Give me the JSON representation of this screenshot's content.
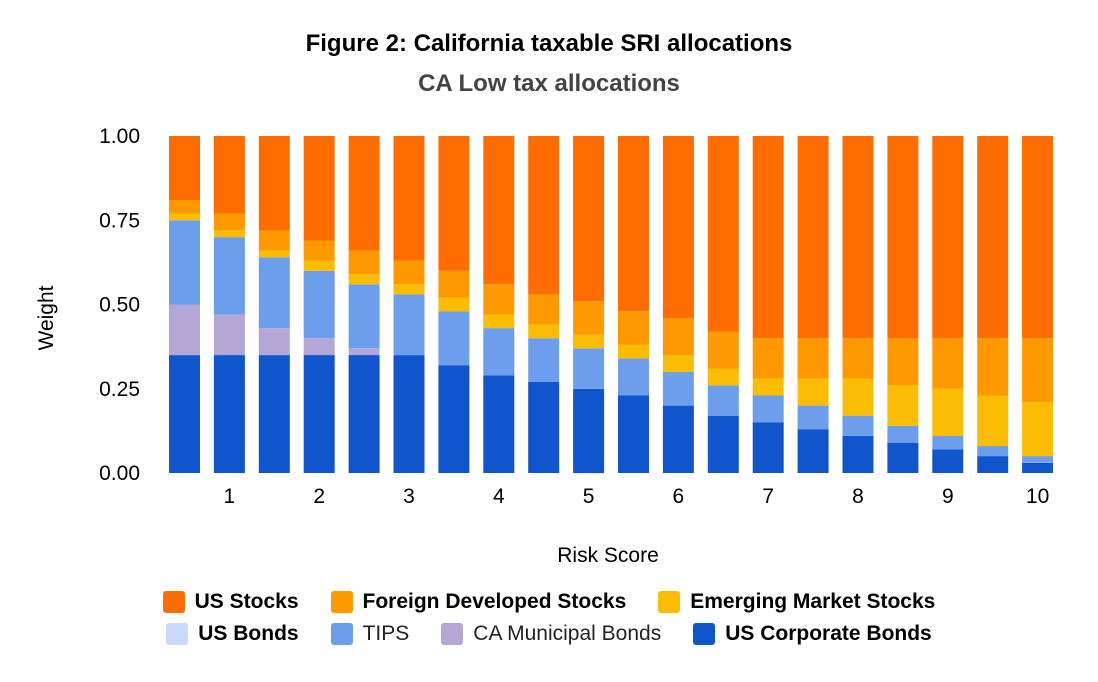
{
  "chart_data": {
    "type": "bar",
    "stacked": true,
    "title": "Figure 2: California taxable SRI allocations",
    "subtitle": "CA Low tax allocations",
    "xlabel": "Risk Score",
    "ylabel": "Weight",
    "ylim": [
      0,
      1
    ],
    "yticks": [
      "0.00",
      "0.25",
      "0.50",
      "0.75",
      "1.00"
    ],
    "xtick_labels": [
      "",
      "1",
      "",
      "2",
      "",
      "3",
      "",
      "4",
      "",
      "5",
      "",
      "6",
      "",
      "7",
      "",
      "8",
      "",
      "9",
      "",
      "10"
    ],
    "categories": [
      0.5,
      1,
      1.5,
      2,
      2.5,
      3,
      3.5,
      4,
      4.5,
      5,
      5.5,
      6,
      6.5,
      7,
      7.5,
      8,
      8.5,
      9,
      9.5,
      10
    ],
    "legend_position": "bottom",
    "grid": false,
    "series": [
      {
        "name": "US Corporate Bonds",
        "color": "#1155cc",
        "values": [
          0.35,
          0.35,
          0.35,
          0.35,
          0.35,
          0.35,
          0.32,
          0.29,
          0.27,
          0.25,
          0.23,
          0.2,
          0.17,
          0.15,
          0.13,
          0.11,
          0.09,
          0.07,
          0.05,
          0.03
        ]
      },
      {
        "name": "CA Municipal Bonds",
        "color": "#b4a7d6",
        "values": [
          0.15,
          0.12,
          0.08,
          0.05,
          0.02,
          0,
          0,
          0,
          0,
          0,
          0,
          0,
          0,
          0,
          0,
          0,
          0,
          0,
          0,
          0
        ]
      },
      {
        "name": "TIPS",
        "color": "#6d9eeb",
        "values": [
          0.25,
          0.23,
          0.21,
          0.2,
          0.19,
          0.18,
          0.16,
          0.14,
          0.13,
          0.12,
          0.11,
          0.1,
          0.09,
          0.08,
          0.07,
          0.06,
          0.05,
          0.04,
          0.03,
          0.02
        ]
      },
      {
        "name": "US Bonds",
        "color": "#c9daf8",
        "values": [
          0,
          0,
          0,
          0,
          0,
          0,
          0,
          0,
          0,
          0,
          0,
          0,
          0,
          0,
          0,
          0,
          0,
          0,
          0,
          0
        ]
      },
      {
        "name": "Emerging Market Stocks",
        "color": "#fbbc04",
        "values": [
          0.02,
          0.02,
          0.02,
          0.03,
          0.03,
          0.03,
          0.04,
          0.04,
          0.04,
          0.04,
          0.04,
          0.05,
          0.05,
          0.05,
          0.08,
          0.11,
          0.12,
          0.14,
          0.15,
          0.16
        ]
      },
      {
        "name": "Foreign Developed Stocks",
        "color": "#ff9900",
        "values": [
          0.04,
          0.05,
          0.06,
          0.06,
          0.07,
          0.07,
          0.08,
          0.09,
          0.09,
          0.1,
          0.1,
          0.11,
          0.11,
          0.12,
          0.12,
          0.12,
          0.14,
          0.15,
          0.17,
          0.19
        ]
      },
      {
        "name": "US Stocks",
        "color": "#ff6d01",
        "values": [
          0.19,
          0.23,
          0.28,
          0.31,
          0.34,
          0.37,
          0.4,
          0.44,
          0.47,
          0.49,
          0.52,
          0.54,
          0.58,
          0.6,
          0.6,
          0.6,
          0.6,
          0.6,
          0.6,
          0.6
        ]
      }
    ],
    "legend": [
      [
        {
          "name": "US Stocks",
          "color": "#ff6d01",
          "weight": "bold"
        },
        {
          "name": "Foreign Developed Stocks",
          "color": "#ff9900",
          "weight": "bold"
        },
        {
          "name": "Emerging Market Stocks",
          "color": "#fbbc04",
          "weight": "bold"
        }
      ],
      [
        {
          "name": "US Bonds",
          "color": "#c9daf8",
          "weight": "bold"
        },
        {
          "name": "TIPS",
          "color": "#6d9eeb",
          "weight": "normal"
        },
        {
          "name": "CA Municipal Bonds",
          "color": "#b4a7d6",
          "weight": "normal"
        },
        {
          "name": "US Corporate Bonds",
          "color": "#1155cc",
          "weight": "bold"
        }
      ]
    ]
  }
}
